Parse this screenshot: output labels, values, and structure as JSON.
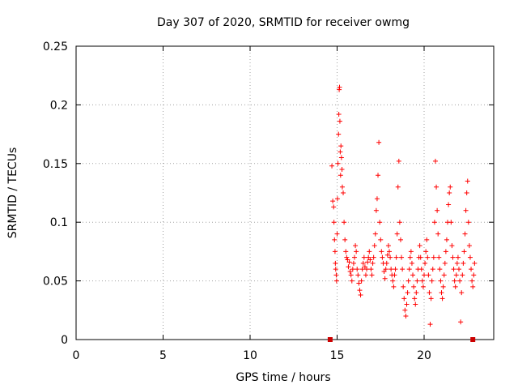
{
  "chart_data": {
    "type": "scatter",
    "title": "Day 307 of 2020, SRMTID for receiver owmg",
    "xlabel": "GPS time / hours",
    "ylabel": "SRMTID / TECUs",
    "xlim": [
      0,
      24
    ],
    "ylim": [
      0,
      0.25
    ],
    "xticks": [
      0,
      5,
      10,
      15,
      20
    ],
    "xtick_labels": [
      "0",
      "5",
      "10",
      "15",
      "20"
    ],
    "yticks": [
      0,
      0.05,
      0.1,
      0.15,
      0.2,
      0.25
    ],
    "ytick_labels": [
      "0",
      "0.05",
      "0.1",
      "0.15",
      "0.2",
      "0.25"
    ],
    "grid": true,
    "marker": "plus",
    "series": [
      {
        "name": "SRMTID",
        "color": "#ff0000",
        "points": [
          [
            14.7,
            0.148
          ],
          [
            14.75,
            0.118
          ],
          [
            14.8,
            0.113
          ],
          [
            14.82,
            0.1
          ],
          [
            14.85,
            0.085
          ],
          [
            14.88,
            0.075
          ],
          [
            14.9,
            0.065
          ],
          [
            14.92,
            0.06
          ],
          [
            14.95,
            0.055
          ],
          [
            14.97,
            0.05
          ],
          [
            15.0,
            0.09
          ],
          [
            15.02,
            0.12
          ],
          [
            15.05,
            0.15
          ],
          [
            15.08,
            0.175
          ],
          [
            15.1,
            0.192
          ],
          [
            15.12,
            0.213
          ],
          [
            15.14,
            0.215
          ],
          [
            15.16,
            0.186
          ],
          [
            15.18,
            0.16
          ],
          [
            15.2,
            0.14
          ],
          [
            15.22,
            0.165
          ],
          [
            15.25,
            0.155
          ],
          [
            15.28,
            0.145
          ],
          [
            15.3,
            0.13
          ],
          [
            15.35,
            0.125
          ],
          [
            15.4,
            0.1
          ],
          [
            15.45,
            0.085
          ],
          [
            15.5,
            0.075
          ],
          [
            15.55,
            0.07
          ],
          [
            15.6,
            0.068
          ],
          [
            15.65,
            0.062
          ],
          [
            15.7,
            0.066
          ],
          [
            15.75,
            0.058
          ],
          [
            15.8,
            0.055
          ],
          [
            15.85,
            0.05
          ],
          [
            15.9,
            0.06
          ],
          [
            15.95,
            0.065
          ],
          [
            16.0,
            0.07
          ],
          [
            16.05,
            0.08
          ],
          [
            16.1,
            0.075
          ],
          [
            16.15,
            0.06
          ],
          [
            16.2,
            0.055
          ],
          [
            16.25,
            0.048
          ],
          [
            16.3,
            0.042
          ],
          [
            16.35,
            0.038
          ],
          [
            16.4,
            0.05
          ],
          [
            16.45,
            0.06
          ],
          [
            16.5,
            0.065
          ],
          [
            16.55,
            0.07
          ],
          [
            16.6,
            0.062
          ],
          [
            16.65,
            0.055
          ],
          [
            16.7,
            0.06
          ],
          [
            16.75,
            0.066
          ],
          [
            16.8,
            0.07
          ],
          [
            16.85,
            0.075
          ],
          [
            16.9,
            0.068
          ],
          [
            16.95,
            0.06
          ],
          [
            17.0,
            0.055
          ],
          [
            17.05,
            0.065
          ],
          [
            17.1,
            0.07
          ],
          [
            17.15,
            0.08
          ],
          [
            17.2,
            0.09
          ],
          [
            17.25,
            0.11
          ],
          [
            17.3,
            0.12
          ],
          [
            17.35,
            0.14
          ],
          [
            17.4,
            0.168
          ],
          [
            17.45,
            0.1
          ],
          [
            17.5,
            0.085
          ],
          [
            17.55,
            0.075
          ],
          [
            17.6,
            0.07
          ],
          [
            17.65,
            0.065
          ],
          [
            17.7,
            0.058
          ],
          [
            17.75,
            0.052
          ],
          [
            17.8,
            0.06
          ],
          [
            17.85,
            0.065
          ],
          [
            17.9,
            0.072
          ],
          [
            17.95,
            0.08
          ],
          [
            18.0,
            0.075
          ],
          [
            18.05,
            0.07
          ],
          [
            18.1,
            0.06
          ],
          [
            18.15,
            0.055
          ],
          [
            18.2,
            0.05
          ],
          [
            18.25,
            0.045
          ],
          [
            18.3,
            0.055
          ],
          [
            18.35,
            0.06
          ],
          [
            18.4,
            0.07
          ],
          [
            18.45,
            0.09
          ],
          [
            18.5,
            0.13
          ],
          [
            18.55,
            0.152
          ],
          [
            18.6,
            0.1
          ],
          [
            18.65,
            0.085
          ],
          [
            18.7,
            0.07
          ],
          [
            18.75,
            0.06
          ],
          [
            18.8,
            0.045
          ],
          [
            18.85,
            0.035
          ],
          [
            18.9,
            0.025
          ],
          [
            18.95,
            0.02
          ],
          [
            19.0,
            0.03
          ],
          [
            19.05,
            0.04
          ],
          [
            19.1,
            0.05
          ],
          [
            19.15,
            0.06
          ],
          [
            19.2,
            0.07
          ],
          [
            19.25,
            0.075
          ],
          [
            19.3,
            0.065
          ],
          [
            19.35,
            0.055
          ],
          [
            19.4,
            0.045
          ],
          [
            19.45,
            0.035
          ],
          [
            19.5,
            0.03
          ],
          [
            19.55,
            0.04
          ],
          [
            19.6,
            0.05
          ],
          [
            19.65,
            0.06
          ],
          [
            19.7,
            0.07
          ],
          [
            19.75,
            0.08
          ],
          [
            19.8,
            0.07
          ],
          [
            19.85,
            0.06
          ],
          [
            19.9,
            0.05
          ],
          [
            19.95,
            0.045
          ],
          [
            20.0,
            0.055
          ],
          [
            20.05,
            0.065
          ],
          [
            20.1,
            0.075
          ],
          [
            20.15,
            0.085
          ],
          [
            20.2,
            0.07
          ],
          [
            20.25,
            0.055
          ],
          [
            20.3,
            0.04
          ],
          [
            20.35,
            0.013
          ],
          [
            20.4,
            0.035
          ],
          [
            20.45,
            0.05
          ],
          [
            20.5,
            0.06
          ],
          [
            20.55,
            0.07
          ],
          [
            20.6,
            0.1
          ],
          [
            20.65,
            0.152
          ],
          [
            20.7,
            0.13
          ],
          [
            20.75,
            0.11
          ],
          [
            20.8,
            0.09
          ],
          [
            20.85,
            0.07
          ],
          [
            20.9,
            0.06
          ],
          [
            20.95,
            0.05
          ],
          [
            21.0,
            0.04
          ],
          [
            21.05,
            0.035
          ],
          [
            21.1,
            0.045
          ],
          [
            21.15,
            0.055
          ],
          [
            21.2,
            0.065
          ],
          [
            21.25,
            0.075
          ],
          [
            21.3,
            0.085
          ],
          [
            21.35,
            0.1
          ],
          [
            21.4,
            0.115
          ],
          [
            21.45,
            0.125
          ],
          [
            21.5,
            0.13
          ],
          [
            21.55,
            0.1
          ],
          [
            21.6,
            0.08
          ],
          [
            21.65,
            0.07
          ],
          [
            21.7,
            0.06
          ],
          [
            21.75,
            0.05
          ],
          [
            21.8,
            0.045
          ],
          [
            21.85,
            0.055
          ],
          [
            21.9,
            0.065
          ],
          [
            21.95,
            0.07
          ],
          [
            22.0,
            0.06
          ],
          [
            22.05,
            0.05
          ],
          [
            22.1,
            0.015
          ],
          [
            22.15,
            0.04
          ],
          [
            22.2,
            0.055
          ],
          [
            22.25,
            0.065
          ],
          [
            22.3,
            0.075
          ],
          [
            22.35,
            0.09
          ],
          [
            22.4,
            0.11
          ],
          [
            22.45,
            0.125
          ],
          [
            22.5,
            0.135
          ],
          [
            22.55,
            0.1
          ],
          [
            22.6,
            0.08
          ],
          [
            22.65,
            0.07
          ],
          [
            22.7,
            0.06
          ],
          [
            22.75,
            0.05
          ],
          [
            22.8,
            0.045
          ],
          [
            22.85,
            0.055
          ],
          [
            22.9,
            0.065
          ]
        ]
      }
    ],
    "baseline_markers": {
      "color": "#cc0000",
      "x": [
        14.6,
        22.8
      ],
      "y": 0
    }
  }
}
